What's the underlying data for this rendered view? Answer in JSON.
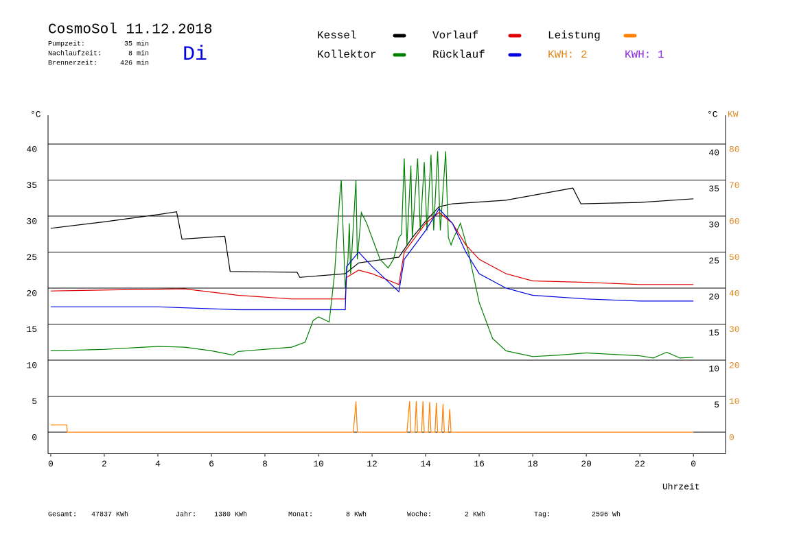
{
  "chart_data": {
    "type": "line",
    "title": "CosmoSol 11.12.2018",
    "day": "Di",
    "info": [
      [
        "Pumpzeit:",
        "35 min"
      ],
      [
        "Nachlaufzeit:",
        "8 min"
      ],
      [
        "Brennerzeit:",
        "426 min"
      ]
    ],
    "kwh_labels": [
      {
        "text": "KWH: 2",
        "color": "#e08a1e"
      },
      {
        "text": "KWH: 1",
        "color": "#8a2be2"
      }
    ],
    "ylabel": "°C",
    "y2label_left": "°C",
    "y2label": "KW",
    "xlabel": "Uhrzeit",
    "xlim": [
      -0.1,
      25.2
    ],
    "xticks": [
      0,
      2,
      4,
      6,
      8,
      10,
      12,
      14,
      16,
      18,
      20,
      22,
      {
        "value": 24,
        "label": "0"
      }
    ],
    "ylim": [
      -3,
      44
    ],
    "yticks": [
      0,
      5,
      10,
      15,
      20,
      25,
      30,
      35,
      40
    ],
    "yticks_right": [
      5,
      10,
      15,
      20,
      25,
      30,
      35,
      40
    ],
    "y2lim": [
      -6,
      88
    ],
    "y2ticks": [
      0,
      10,
      20,
      30,
      40,
      50,
      60,
      70,
      80
    ],
    "grid": true,
    "series": [
      {
        "name": "Kessel",
        "color": "#000000",
        "x": [
          0,
          2,
          4,
          4.7,
          4.9,
          6.5,
          6.7,
          9.2,
          9.3,
          11,
          11.5,
          13,
          13.5,
          14,
          14.5,
          15,
          17,
          19.5,
          19.8,
          22,
          24
        ],
        "values": [
          28.3,
          29.2,
          30.2,
          30.6,
          26.8,
          27.2,
          22.3,
          22.2,
          21.5,
          22,
          23.5,
          24.3,
          27,
          29.3,
          31.3,
          31.7,
          32.2,
          33.9,
          31.7,
          31.9,
          32.4
        ]
      },
      {
        "name": "Kollektor",
        "color": "#008000",
        "x": [
          0,
          2,
          4,
          5,
          6,
          6.8,
          7,
          9,
          9.5,
          9.8,
          10,
          10.4,
          10.6,
          10.8,
          10.85,
          10.9,
          11,
          11.1,
          11.15,
          11.2,
          11.4,
          11.45,
          11.6,
          11.8,
          12,
          12.3,
          12.6,
          12.8,
          13,
          13.1,
          13.2,
          13.3,
          13.45,
          13.5,
          13.7,
          13.8,
          13.95,
          14.05,
          14.2,
          14.3,
          14.45,
          14.55,
          14.75,
          14.85,
          14.95,
          15.05,
          15.3,
          15.6,
          16,
          16.5,
          17,
          18,
          19,
          20,
          21,
          22,
          22.5,
          23,
          23.5,
          24
        ],
        "values": [
          11.3,
          11.5,
          11.9,
          11.8,
          11.3,
          10.7,
          11.2,
          11.8,
          12.5,
          15.5,
          16,
          15.3,
          22,
          33,
          35,
          30,
          20,
          24,
          29,
          22,
          35,
          24,
          30.5,
          29,
          27,
          24,
          22.8,
          24,
          27,
          27.5,
          38,
          26,
          37,
          27,
          38,
          28,
          37.5,
          28,
          38.5,
          28,
          39,
          28,
          39,
          27,
          26,
          27,
          29,
          25,
          18,
          13,
          11.3,
          10.5,
          10.7,
          11,
          10.8,
          10.6,
          10.3,
          11.1,
          10.3,
          10.4
        ]
      },
      {
        "name": "Vorlauf",
        "color": "#e00000",
        "x": [
          0,
          3,
          5,
          7,
          9,
          11,
          11.05,
          11.5,
          12,
          13,
          13.2,
          14,
          14.5,
          15,
          15.5,
          16,
          17,
          18,
          20,
          22,
          24
        ],
        "values": [
          19.6,
          19.8,
          19.9,
          19,
          18.5,
          18.5,
          21.5,
          22.5,
          22,
          20.5,
          25,
          29,
          30.5,
          29,
          26,
          24,
          22,
          21,
          20.8,
          20.5,
          20.5
        ]
      },
      {
        "name": "Rücklauf",
        "color": "#0000e0",
        "x": [
          0,
          4,
          7,
          11,
          11.05,
          11.5,
          12,
          13,
          13.2,
          14,
          14.5,
          15,
          15.5,
          16,
          17,
          18,
          20,
          22,
          24
        ],
        "values": [
          17.4,
          17.4,
          17,
          17,
          23,
          25,
          23,
          19.5,
          24,
          28,
          31,
          29,
          25,
          22,
          20,
          19,
          18.5,
          18.2,
          18.2
        ]
      },
      {
        "name": "Leistung",
        "color": "#ff8000",
        "axis": "y2",
        "x": [
          0,
          0.6,
          0.62,
          11.3,
          11.4,
          11.45,
          13.3,
          13.4,
          13.45,
          13.6,
          13.65,
          13.7,
          13.85,
          13.9,
          13.95,
          14.1,
          14.15,
          14.2,
          14.35,
          14.4,
          14.45,
          14.6,
          14.65,
          14.7,
          14.85,
          14.9,
          14.95,
          24
        ],
        "values": [
          2,
          2,
          0,
          0,
          8.5,
          0,
          0,
          8.6,
          0,
          0,
          8.6,
          0,
          0,
          8.6,
          0,
          0,
          8.4,
          0,
          0,
          8.2,
          0,
          0,
          7.8,
          0,
          0,
          6.4,
          0,
          0
        ]
      }
    ],
    "footer": [
      [
        "Gesamt:",
        "47837 KWh"
      ],
      [
        "Jahr:",
        "1380 KWh"
      ],
      [
        "Monat:",
        "8 KWh"
      ],
      [
        "Woche:",
        "2 KWh"
      ],
      [
        "Tag:",
        "2596 Wh"
      ]
    ]
  }
}
